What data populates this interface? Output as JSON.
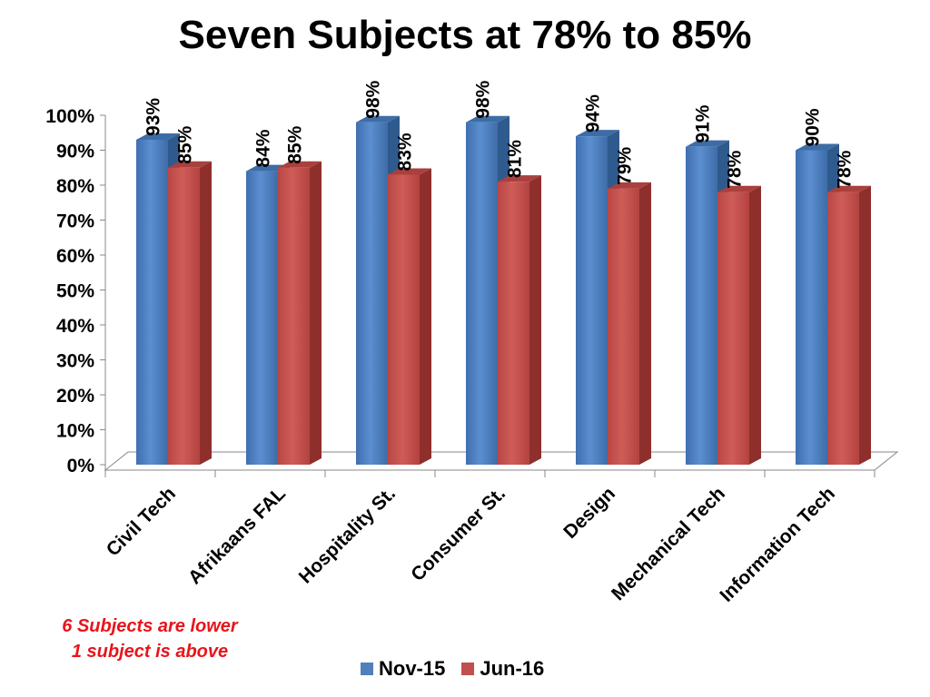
{
  "chart_data": {
    "type": "bar",
    "title": "Seven Subjects at 78% to 85%",
    "categories": [
      "Civil Tech",
      "Afrikaans FAL",
      "Hospitality St.",
      "Consumer St.",
      "Design",
      "Mechanical Tech",
      "Information Tech"
    ],
    "series": [
      {
        "name": "Nov-15",
        "color": "#4f81bd",
        "values": [
          93,
          84,
          98,
          98,
          94,
          91,
          90
        ]
      },
      {
        "name": "Jun-16",
        "color": "#c0504d",
        "values": [
          85,
          85,
          83,
          81,
          79,
          78,
          78
        ]
      }
    ],
    "data_labels": [
      [
        "93%",
        "84%",
        "98%",
        "98%",
        "94%",
        "91%",
        "90%"
      ],
      [
        "85%",
        "85%",
        "83%",
        "81%",
        "79%",
        "78%",
        "78%"
      ]
    ],
    "ylim": [
      0,
      100
    ],
    "yticks": [
      0,
      10,
      20,
      30,
      40,
      50,
      60,
      70,
      80,
      90,
      100
    ],
    "ytick_labels": [
      "0%",
      "10%",
      "20%",
      "30%",
      "40%",
      "50%",
      "60%",
      "70%",
      "80%",
      "90%",
      "100%"
    ],
    "xlabel": "",
    "ylabel": "",
    "grid": false,
    "legend_position": "bottom",
    "annotations": [
      "6 Subjects are lower",
      "1 subject is above"
    ]
  }
}
